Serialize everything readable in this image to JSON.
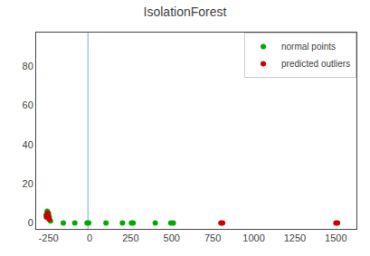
{
  "chart_data": {
    "type": "scatter",
    "title": "IsolationForest",
    "series": [
      {
        "name": "normal points",
        "color": "#00aa00",
        "x": [
          -265,
          -258,
          -250,
          -245,
          -238,
          -160,
          -90,
          -15,
          -5,
          100,
          200,
          255,
          265,
          400,
          495,
          510
        ],
        "values": [
          4,
          6,
          5,
          3,
          1,
          0,
          0,
          0,
          0,
          0,
          0,
          0,
          0,
          0,
          0,
          0
        ]
      },
      {
        "name": "predicted outliers",
        "color": "#cc0000",
        "x": [
          -262,
          -256,
          -252,
          -246,
          800,
          810,
          1500,
          1510
        ],
        "values": [
          3,
          5,
          4,
          2,
          0,
          0,
          0,
          0
        ]
      }
    ],
    "vline": {
      "x": -10,
      "color": "#6ab0d4"
    },
    "xlim": [
      -325,
      1625
    ],
    "xticks": [
      -250,
      0,
      250,
      500,
      750,
      1000,
      1250,
      1500
    ],
    "ylim": [
      -3,
      97
    ],
    "yticks": [
      0,
      20,
      40,
      60,
      80
    ],
    "grid": false,
    "legend": "upper right"
  }
}
